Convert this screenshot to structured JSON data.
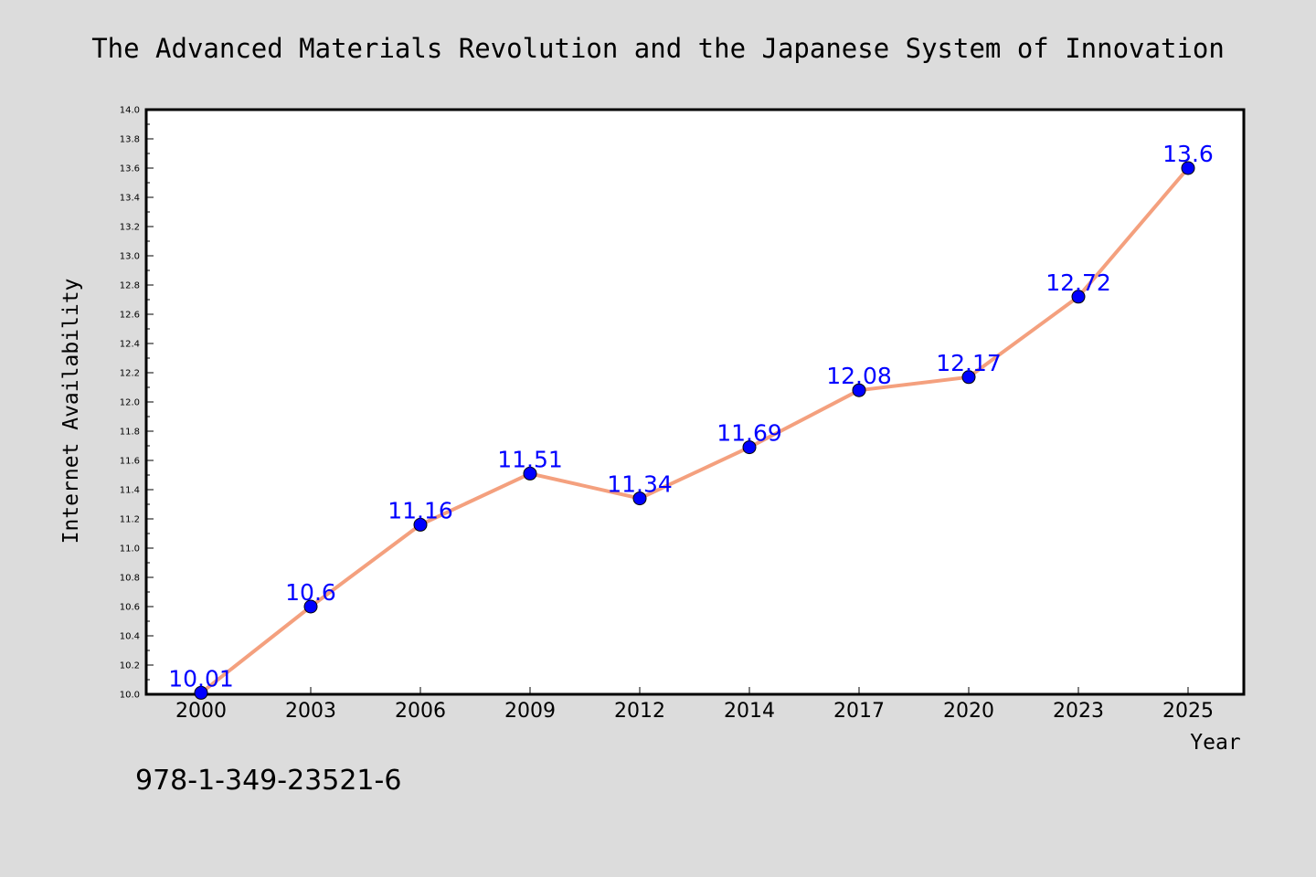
{
  "isbn": "978-1-349-23521-6",
  "colors": {
    "background": "#dcdcdc",
    "plot_background": "#ffffff",
    "line": "#f4a07e",
    "marker": "#0000ff",
    "data_label": "#0000ff"
  },
  "chart_data": {
    "type": "line",
    "title": "The Advanced Materials Revolution and the Japanese System of Innovation",
    "xlabel": "Year",
    "ylabel": "Internet Availability",
    "categories": [
      "2000",
      "2003",
      "2006",
      "2009",
      "2012",
      "2014",
      "2017",
      "2020",
      "2023",
      "2025"
    ],
    "series": [
      {
        "values": [
          10.01,
          10.6,
          11.16,
          11.51,
          11.34,
          11.69,
          12.08,
          12.17,
          12.72,
          13.6
        ],
        "labels": [
          "10.01",
          "10.6",
          "11.16",
          "11.51",
          "11.34",
          "11.69",
          "12.08",
          "12.17",
          "12.72",
          "13.6"
        ]
      }
    ],
    "ylim": [
      10.0,
      14.0
    ],
    "yticks": [
      "10.0",
      "10.2",
      "10.4",
      "10.6",
      "10.8",
      "11.0",
      "11.2",
      "11.4",
      "11.6",
      "11.8",
      "12.0",
      "12.2",
      "12.4",
      "12.6",
      "12.8",
      "13.0",
      "13.2",
      "13.4",
      "13.6",
      "13.8",
      "14.0"
    ],
    "grid": false,
    "legend": "none"
  }
}
